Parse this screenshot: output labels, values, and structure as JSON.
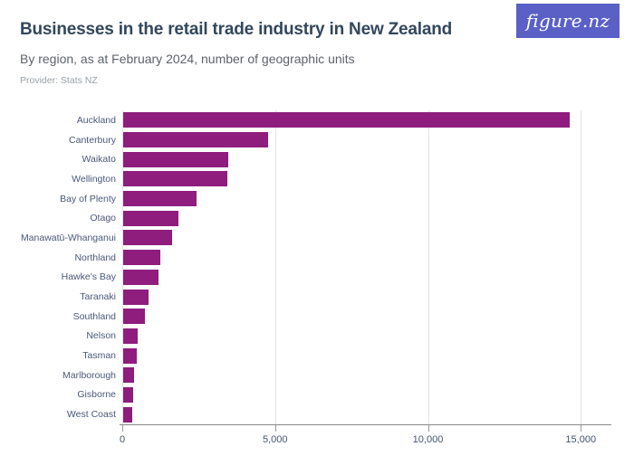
{
  "header": {
    "title": "Businesses in the retail trade industry in New Zealand",
    "subtitle": "By region, as at February 2024, number of geographic units",
    "provider": "Provider: Stats NZ",
    "logo_text": "figure.nz"
  },
  "colors": {
    "bar": "#8e1d7d",
    "logo_background": "#5a60c6",
    "logo_text": "#ffffff",
    "title_text": "#33475c",
    "subtitle_text": "#5d636b",
    "provider_text": "#9aa0a6",
    "axis_label_text": "#4a5878",
    "gridline": "#e4e4e4",
    "axis_line": "#8a8a8a"
  },
  "chart_data": {
    "type": "bar",
    "orientation": "horizontal",
    "title": "Businesses in the retail trade industry in New Zealand",
    "subtitle": "By region, as at February 2024, number of geographic units",
    "provider": "Stats NZ",
    "categories": [
      "Auckland",
      "Canterbury",
      "Waikato",
      "Wellington",
      "Bay of Plenty",
      "Otago",
      "Manawatū-Whanganui",
      "Northland",
      "Hawke's Bay",
      "Taranaki",
      "Southland",
      "Nelson",
      "Tasman",
      "Marlborough",
      "Gisborne",
      "West Coast"
    ],
    "values": [
      14600,
      4750,
      3450,
      3400,
      2400,
      1800,
      1600,
      1200,
      1150,
      840,
      710,
      475,
      445,
      355,
      325,
      290
    ],
    "xlabel": "",
    "ylabel": "",
    "xlim": [
      0,
      16000
    ],
    "x_ticks": [
      {
        "label": "0",
        "value": 0
      },
      {
        "label": "5,000",
        "value": 5000
      },
      {
        "label": "10,000",
        "value": 10000
      },
      {
        "label": "15,000",
        "value": 15000
      }
    ],
    "grid": true,
    "legend": false
  }
}
